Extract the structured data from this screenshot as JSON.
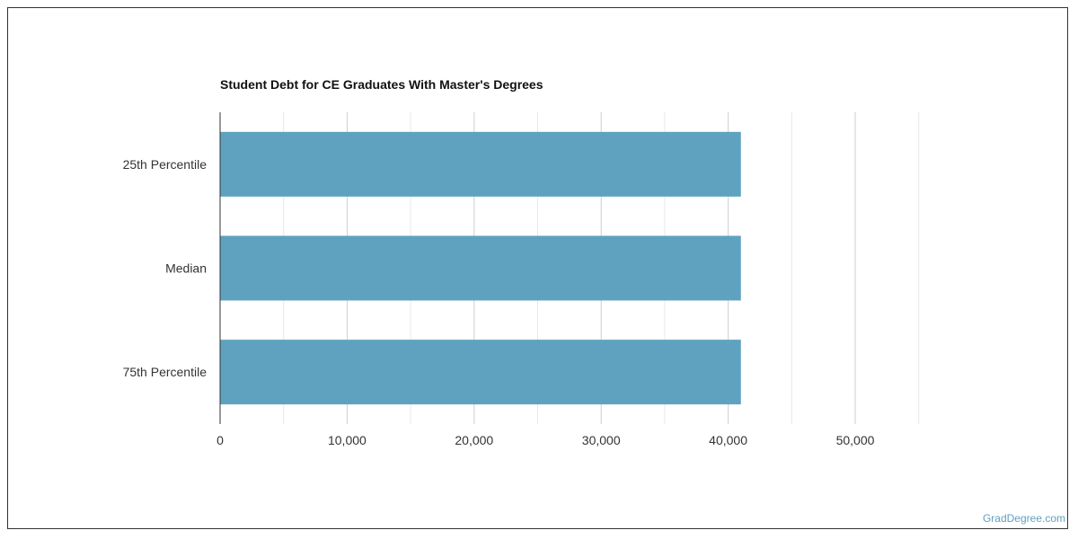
{
  "chart_data": {
    "type": "bar",
    "orientation": "horizontal",
    "title": "Student Debt for CE Graduates With Master's Degrees",
    "categories": [
      "25th Percentile",
      "Median",
      "75th Percentile"
    ],
    "values": [
      41000,
      41000,
      41000
    ],
    "xlim": [
      0,
      55000
    ],
    "xticks": [
      0,
      10000,
      20000,
      30000,
      40000,
      50000
    ],
    "xtick_labels": [
      "0",
      "10,000",
      "20,000",
      "30,000",
      "40,000",
      "50,000"
    ],
    "grid": true,
    "bar_color": "#5ea2c0"
  },
  "credit": "GradDegree.com"
}
